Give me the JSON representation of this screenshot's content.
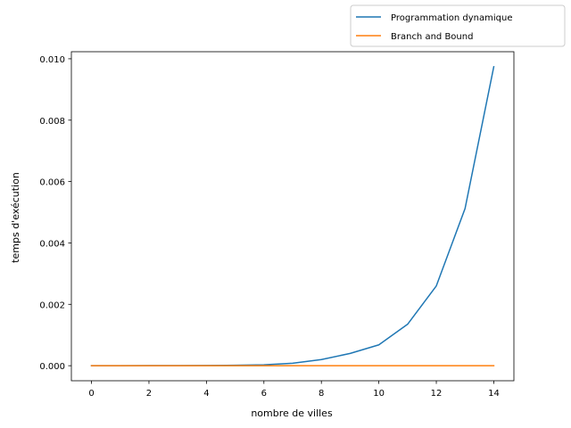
{
  "chart_data": {
    "type": "line",
    "title": "",
    "xlabel": "nombre de villes",
    "ylabel": "temps d'exécution",
    "xlim": [
      -0.7,
      14.7
    ],
    "ylim": [
      -0.00049,
      0.01023
    ],
    "xticks": [
      0,
      2,
      4,
      6,
      8,
      10,
      12,
      14
    ],
    "xtick_labels": [
      "0",
      "2",
      "4",
      "6",
      "8",
      "10",
      "12",
      "14"
    ],
    "yticks": [
      0,
      0.002,
      0.004,
      0.006,
      0.008,
      0.01
    ],
    "ytick_labels": [
      "0.000",
      "0.002",
      "0.004",
      "0.006",
      "0.008",
      "0.010"
    ],
    "x": [
      0,
      1,
      2,
      3,
      4,
      5,
      6,
      7,
      8,
      9,
      10,
      11,
      12,
      13,
      14
    ],
    "grid": false,
    "legend_position": "top-right, outside plot area",
    "series": [
      {
        "name": "Programmation dynamique",
        "color": "#1f77b4",
        "values": [
          0.0,
          1e-06,
          2e-06,
          4e-06,
          7e-06,
          1.5e-05,
          3e-05,
          8e-05,
          0.0002,
          0.0004,
          0.00068,
          0.00135,
          0.0026,
          0.00512,
          0.00974
        ]
      },
      {
        "name": "Branch and Bound",
        "color": "#ff7f0e",
        "values": [
          0.0,
          0.0,
          0.0,
          0.0,
          0.0,
          0.0,
          0.0,
          0.0,
          0.0,
          0.0,
          0.0,
          0.0,
          0.0,
          0.0,
          0.0
        ]
      }
    ]
  }
}
